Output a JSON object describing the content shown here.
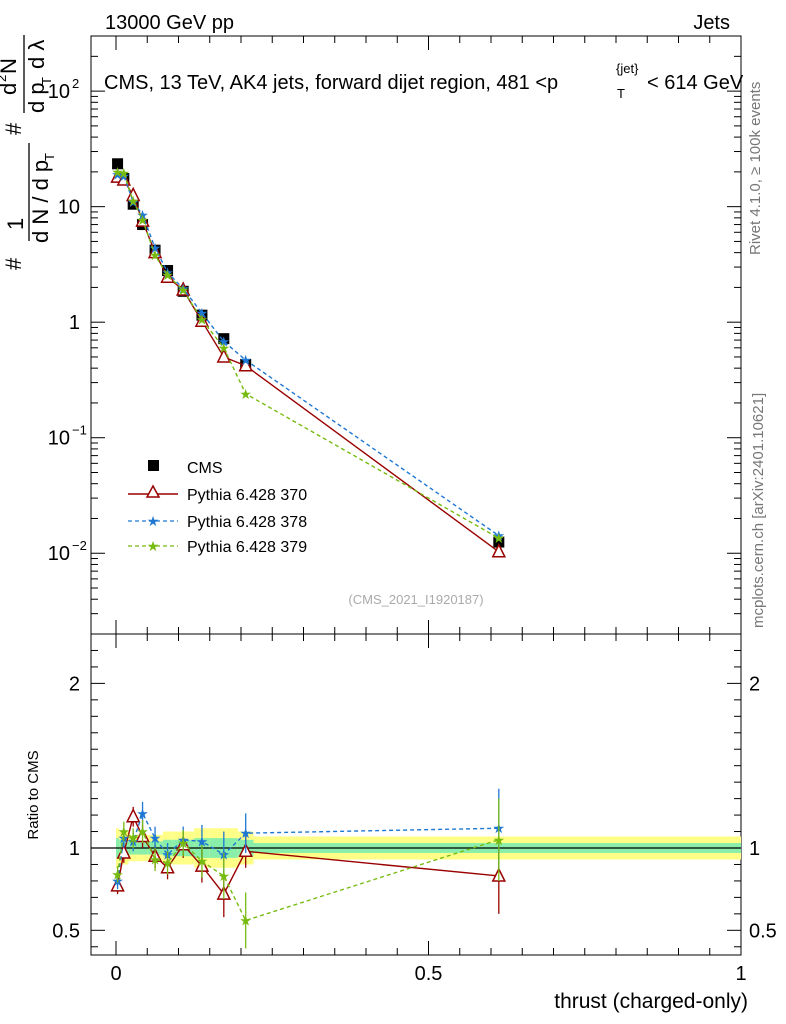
{
  "header": {
    "left": "13000 GeV pp",
    "right": "Jets"
  },
  "side_labels": {
    "rivet": "Rivet 4.1.0, ≥ 100k events",
    "mcplots": "mcplots.cern.ch [arXiv:2401.10621]"
  },
  "watermark": "(CMS_2021_I1920187)",
  "colors": {
    "cms": "#000000",
    "p370": "#990000",
    "p378": "#1f77d4",
    "p379": "#77bb11",
    "band_inner": "#88eeaa",
    "band_outer": "#ffff88"
  },
  "chart_data": [
    {
      "type": "scatter",
      "panel": "main",
      "title": "CMS, 13 TeV, AK4 jets, forward dijet region, 481 <p_T^{jet}< 614 GeV",
      "title_parts": {
        "pre": "CMS, 13 TeV, AK4 jets, forward dijet region, 481 <p",
        "sub": "T",
        "sup": "{jet}",
        "post": "< 614 GeV"
      },
      "ylabel": "1/(dN/dp_T) d²N/(dp_T dλ)",
      "ylabel_parts": {
        "a": "#",
        "b": "1",
        "c": "d N / d p",
        "d": "T",
        "e": "#",
        "f": "d",
        "g": "2",
        "h": "N",
        "i": "d p",
        "j": "T",
        "k": "d λ"
      },
      "yscale": "log",
      "ylim": [
        0.002,
        300
      ],
      "xlim": [
        -0.04,
        1.0
      ],
      "yticks": [
        {
          "value": 0.01,
          "base": "10",
          "exp": "−2"
        },
        {
          "value": 0.1,
          "base": "10",
          "exp": "−1"
        },
        {
          "value": 1,
          "base": "1",
          "exp": ""
        },
        {
          "value": 10,
          "base": "10",
          "exp": ""
        },
        {
          "value": 100,
          "base": "10",
          "exp": "2"
        }
      ],
      "legend_position": "middle-left",
      "series": [
        {
          "name": "CMS",
          "style": "square",
          "x": [
            0.0025,
            0.0125,
            0.0275,
            0.0425,
            0.0625,
            0.0825,
            0.1075,
            0.1375,
            0.1725,
            0.2075,
            0.6125
          ],
          "y": [
            23.5,
            17.5,
            10.5,
            7.0,
            4.2,
            2.8,
            1.85,
            1.15,
            0.72,
            0.43,
            0.0125
          ]
        },
        {
          "name": "Pythia 6.428 370",
          "style": "triangle",
          "x": [
            0.0025,
            0.0125,
            0.0275,
            0.0425,
            0.0625,
            0.0825,
            0.1075,
            0.1375,
            0.1725,
            0.2075,
            0.6125
          ],
          "y": [
            18.0,
            17.0,
            12.5,
            7.5,
            4.0,
            2.45,
            1.9,
            1.02,
            0.5,
            0.42,
            0.0103
          ]
        },
        {
          "name": "Pythia 6.428 378",
          "style": "star",
          "dashed": true,
          "x": [
            0.0025,
            0.0125,
            0.0275,
            0.0425,
            0.0625,
            0.0825,
            0.1075,
            0.1375,
            0.1725,
            0.2075,
            0.6125
          ],
          "y": [
            19.0,
            18.5,
            11.0,
            8.5,
            4.4,
            2.7,
            1.95,
            1.2,
            0.68,
            0.47,
            0.0142
          ]
        },
        {
          "name": "Pythia 6.428 379",
          "style": "star",
          "dashed": true,
          "x": [
            0.0025,
            0.0125,
            0.0275,
            0.0425,
            0.0625,
            0.0825,
            0.1075,
            0.1375,
            0.1725,
            0.2075,
            0.6125
          ],
          "y": [
            20.0,
            19.5,
            11.2,
            7.7,
            3.8,
            2.55,
            1.9,
            1.05,
            0.6,
            0.24,
            0.0135
          ]
        }
      ]
    },
    {
      "type": "scatter",
      "panel": "ratio",
      "ylabel": "Ratio to CMS",
      "xlabel": "thrust (charged-only)",
      "xlim": [
        -0.04,
        1.0
      ],
      "ylim": [
        0.35,
        2.3
      ],
      "yticks": [
        {
          "value": 0.5,
          "label": "0.5"
        },
        {
          "value": 1,
          "label": "1"
        },
        {
          "value": 2,
          "label": "2"
        }
      ],
      "xticks": [
        {
          "value": 0,
          "label": "0"
        },
        {
          "value": 0.5,
          "label": "0.5"
        },
        {
          "value": 1,
          "label": "1"
        }
      ],
      "band_x": [
        0.0,
        0.005,
        0.02,
        0.035,
        0.05,
        0.075,
        0.09,
        0.125,
        0.15,
        0.195,
        0.22,
        1.0
      ],
      "band_inner": [
        0.06,
        0.05,
        0.04,
        0.04,
        0.04,
        0.05,
        0.05,
        0.06,
        0.06,
        0.05,
        0.03
      ],
      "band_outer": [
        0.12,
        0.1,
        0.08,
        0.08,
        0.08,
        0.1,
        0.1,
        0.12,
        0.12,
        0.1,
        0.07
      ],
      "series": [
        {
          "name": "Pythia 6.428 370",
          "style": "triangle",
          "x": [
            0.0025,
            0.0125,
            0.0275,
            0.0425,
            0.0625,
            0.0825,
            0.1075,
            0.1375,
            0.1725,
            0.2075,
            0.6125
          ],
          "y": [
            0.77,
            0.97,
            1.19,
            1.07,
            0.95,
            0.88,
            1.02,
            0.89,
            0.72,
            0.98,
            0.83
          ],
          "err": [
            0.05,
            0.06,
            0.06,
            0.07,
            0.07,
            0.07,
            0.08,
            0.1,
            0.14,
            0.1,
            0.23
          ]
        },
        {
          "name": "Pythia 6.428 378",
          "style": "star",
          "x": [
            0.0025,
            0.0125,
            0.0275,
            0.0425,
            0.0625,
            0.0825,
            0.1075,
            0.1375,
            0.1725,
            0.2075,
            0.6125
          ],
          "y": [
            0.8,
            1.06,
            1.04,
            1.21,
            1.06,
            0.96,
            1.05,
            1.04,
            0.96,
            1.09,
            1.12
          ],
          "err": [
            0.05,
            0.06,
            0.06,
            0.07,
            0.07,
            0.07,
            0.08,
            0.1,
            0.14,
            0.12,
            0.24
          ]
        },
        {
          "name": "Pythia 6.428 379",
          "style": "star",
          "x": [
            0.0025,
            0.0125,
            0.0275,
            0.0425,
            0.0625,
            0.0825,
            0.1075,
            0.1375,
            0.1725,
            0.2075,
            0.6125
          ],
          "y": [
            0.84,
            1.1,
            1.06,
            1.1,
            0.93,
            0.91,
            1.03,
            0.92,
            0.83,
            0.56,
            1.05
          ],
          "err": [
            0.05,
            0.06,
            0.06,
            0.07,
            0.07,
            0.07,
            0.08,
            0.1,
            0.14,
            0.17,
            0.25
          ]
        }
      ]
    }
  ]
}
